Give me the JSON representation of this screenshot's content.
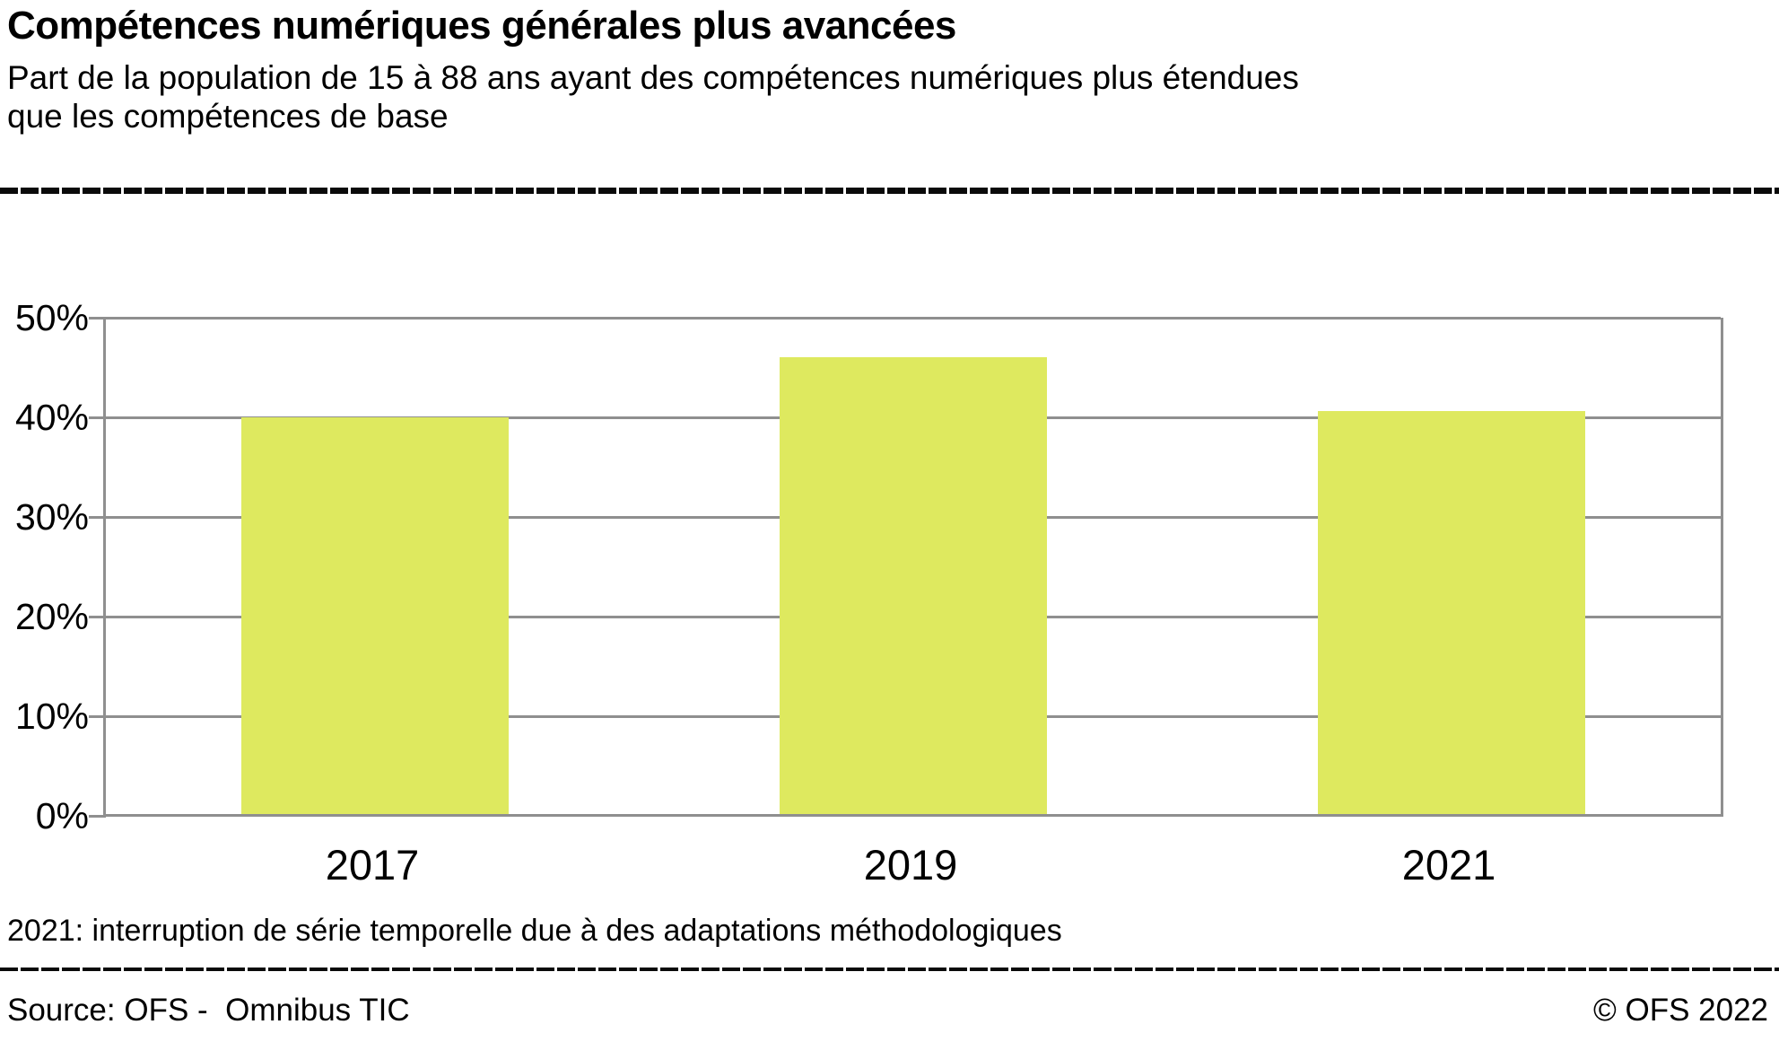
{
  "header": {
    "title": "Compétences numériques générales plus avancées",
    "subtitle": "Part de la population de 15 à 88 ans ayant des compétences numériques plus étendues\nque les compétences de base"
  },
  "chart_data": {
    "type": "bar",
    "title": "Compétences numériques générales plus avancées",
    "categories": [
      "2017",
      "2019",
      "2021"
    ],
    "values": [
      40,
      46,
      40.6
    ],
    "unit": "%",
    "xlabel": "",
    "ylabel": "",
    "ylim": [
      0,
      50
    ],
    "y_ticks": [
      "0%",
      "10%",
      "20%",
      "30%",
      "40%",
      "50%"
    ],
    "grid": true,
    "legend": "none",
    "bar_color": "#dee95f",
    "grid_color": "#8f8f8f"
  },
  "footnote": "2021: interruption de série temporelle due à des adaptations méthodologiques",
  "footer": {
    "source": "Source: OFS -  Omnibus TIC",
    "copyright": "© OFS 2022"
  }
}
